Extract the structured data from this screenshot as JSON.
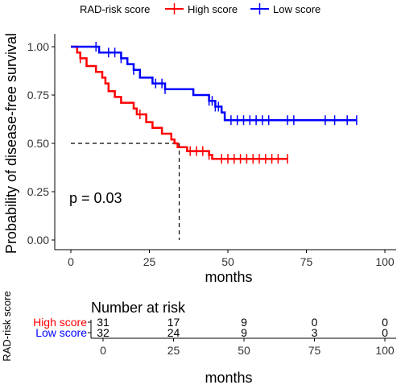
{
  "chart_data": [
    {
      "type": "line",
      "subtype": "kaplan-meier",
      "legend": {
        "title": "RAD-risk score",
        "placement": "top"
      },
      "ylabel": "Probability of disease-free survival",
      "xlabel": "months",
      "xlim": [
        0,
        100
      ],
      "ylim": [
        0,
        1
      ],
      "xticks": [
        "0",
        "25",
        "50",
        "75",
        "100"
      ],
      "yticks": [
        "0.00",
        "0.25",
        "0.50",
        "0.75",
        "1.00"
      ],
      "annotation": "p = 0.03",
      "median_line": {
        "x": 34.5,
        "y": 0.5
      },
      "series": [
        {
          "name": "High score",
          "color": "#ff0000",
          "steps": [
            [
              0,
              1.0
            ],
            [
              2,
              0.97
            ],
            [
              3,
              0.94
            ],
            [
              5,
              0.9
            ],
            [
              8,
              0.87
            ],
            [
              10,
              0.84
            ],
            [
              11,
              0.81
            ],
            [
              12,
              0.77
            ],
            [
              14,
              0.74
            ],
            [
              16,
              0.71
            ],
            [
              20,
              0.68
            ],
            [
              21,
              0.65
            ],
            [
              24,
              0.61
            ],
            [
              26,
              0.58
            ],
            [
              29,
              0.55
            ],
            [
              32,
              0.52
            ],
            [
              33,
              0.5
            ],
            [
              34,
              0.48
            ],
            [
              37,
              0.46
            ],
            [
              44,
              0.44
            ],
            [
              45,
              0.42
            ],
            [
              69,
              0.42
            ]
          ],
          "censor": [
            3,
            22,
            38,
            40,
            42,
            44,
            48,
            50,
            52,
            54,
            56,
            58,
            60,
            62,
            64,
            66,
            69
          ]
        },
        {
          "name": "Low score",
          "color": "#0000ff",
          "steps": [
            [
              0,
              1.0
            ],
            [
              7,
              1.0
            ],
            [
              9,
              0.97
            ],
            [
              16,
              0.94
            ],
            [
              18,
              0.91
            ],
            [
              20,
              0.88
            ],
            [
              22,
              0.84
            ],
            [
              26,
              0.81
            ],
            [
              30,
              0.78
            ],
            [
              39,
              0.75
            ],
            [
              44,
              0.72
            ],
            [
              46,
              0.69
            ],
            [
              48,
              0.66
            ],
            [
              49,
              0.62
            ],
            [
              91,
              0.62
            ]
          ],
          "censor": [
            8,
            12,
            14,
            16,
            20,
            27,
            29,
            30,
            44,
            45,
            46,
            47,
            51,
            53,
            55,
            57,
            59,
            61,
            63,
            69,
            71,
            81,
            84,
            88,
            91
          ]
        }
      ]
    },
    {
      "type": "table",
      "title": "Number at risk",
      "ylabel": "RAD-risk score",
      "xlabel": "months",
      "columns": [
        "0",
        "25",
        "50",
        "75",
        "100"
      ],
      "rows": [
        {
          "name": "High score",
          "color": "#ff0000",
          "values": [
            "31",
            "17",
            "9",
            "0",
            "0"
          ]
        },
        {
          "name": "Low score",
          "color": "#0000ff",
          "values": [
            "32",
            "24",
            "9",
            "3",
            "0"
          ]
        }
      ]
    }
  ]
}
